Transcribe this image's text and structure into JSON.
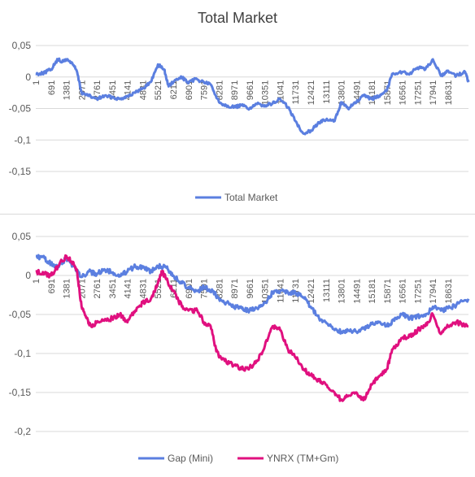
{
  "chart_data": [
    {
      "type": "line",
      "title": "Total Market",
      "xlabel": "",
      "ylabel": "",
      "ylim": [
        -0.15,
        0.05
      ],
      "yticks": [
        "0,05",
        "0",
        "-0,05",
        "-0,1",
        "-0,15"
      ],
      "yticks_values": [
        0.05,
        0,
        -0.05,
        -0.1,
        -0.15
      ],
      "x_range": [
        1,
        19550
      ],
      "x_ticks": [
        "1",
        "691",
        "1381",
        "2071",
        "2761",
        "3451",
        "4141",
        "4831",
        "5521",
        "6211",
        "6901",
        "7591",
        "8281",
        "8971",
        "9661",
        "10351",
        "11041",
        "11731",
        "12421",
        "13111",
        "13801",
        "14491",
        "15181",
        "15871",
        "16561",
        "17251",
        "17941",
        "18631"
      ],
      "grid": "horizontal",
      "legend_position": "bottom",
      "series": [
        {
          "name": "Total Market",
          "color": "#5b7fe0",
          "points": [
            [
              1,
              0.005
            ],
            [
              300,
              0.006
            ],
            [
              691,
              0.012
            ],
            [
              1000,
              0.028
            ],
            [
              1200,
              0.024
            ],
            [
              1381,
              0.028
            ],
            [
              1650,
              0.022
            ],
            [
              1850,
              0.01
            ],
            [
              2071,
              -0.025
            ],
            [
              2400,
              -0.03
            ],
            [
              2761,
              -0.035
            ],
            [
              3100,
              -0.03
            ],
            [
              3451,
              -0.032
            ],
            [
              3800,
              -0.035
            ],
            [
              4141,
              -0.03
            ],
            [
              4500,
              -0.025
            ],
            [
              4831,
              -0.018
            ],
            [
              5200,
              -0.008
            ],
            [
              5521,
              0.02
            ],
            [
              5800,
              0.012
            ],
            [
              6000,
              -0.015
            ],
            [
              6211,
              -0.008
            ],
            [
              6600,
              0.0
            ],
            [
              6901,
              -0.01
            ],
            [
              7200,
              -0.003
            ],
            [
              7591,
              -0.008
            ],
            [
              7900,
              -0.012
            ],
            [
              8281,
              -0.04
            ],
            [
              8600,
              -0.045
            ],
            [
              8971,
              -0.048
            ],
            [
              9300,
              -0.045
            ],
            [
              9661,
              -0.05
            ],
            [
              10000,
              -0.043
            ],
            [
              10351,
              -0.045
            ],
            [
              10700,
              -0.042
            ],
            [
              11041,
              -0.035
            ],
            [
              11400,
              -0.048
            ],
            [
              11731,
              -0.07
            ],
            [
              12100,
              -0.09
            ],
            [
              12421,
              -0.085
            ],
            [
              12800,
              -0.072
            ],
            [
              13111,
              -0.068
            ],
            [
              13500,
              -0.07
            ],
            [
              13801,
              -0.04
            ],
            [
              14100,
              -0.05
            ],
            [
              14491,
              -0.04
            ],
            [
              14800,
              -0.03
            ],
            [
              15181,
              -0.035
            ],
            [
              15500,
              -0.03
            ],
            [
              15871,
              -0.02
            ],
            [
              16100,
              0.005
            ],
            [
              16561,
              0.008
            ],
            [
              16900,
              0.005
            ],
            [
              17251,
              0.015
            ],
            [
              17600,
              0.012
            ],
            [
              17941,
              0.028
            ],
            [
              18300,
              0.002
            ],
            [
              18631,
              0.01
            ],
            [
              19000,
              0.002
            ],
            [
              19400,
              0.008
            ],
            [
              19550,
              -0.008
            ]
          ]
        }
      ]
    },
    {
      "type": "line",
      "title": "",
      "xlabel": "",
      "ylabel": "",
      "ylim": [
        -0.2,
        0.05
      ],
      "yticks": [
        "0,05",
        "0",
        "-0,05",
        "-0,1",
        "-0,15",
        "-0,2"
      ],
      "yticks_values": [
        0.05,
        0,
        -0.05,
        -0.1,
        -0.15,
        -0.2
      ],
      "x_range": [
        1,
        19550
      ],
      "x_ticks": [
        "1",
        "691",
        "1381",
        "2071",
        "2761",
        "3451",
        "4141",
        "4831",
        "5521",
        "6211",
        "6901",
        "7591",
        "8281",
        "8971",
        "9661",
        "10351",
        "11041",
        "11731",
        "12421",
        "13111",
        "13801",
        "14491",
        "15181",
        "15871",
        "16561",
        "17251",
        "17941",
        "18631"
      ],
      "grid": "horizontal",
      "legend_position": "bottom",
      "series": [
        {
          "name": "Gap (Mini)",
          "color": "#5b7fe0",
          "points": [
            [
              1,
              0.025
            ],
            [
              400,
              0.022
            ],
            [
              691,
              0.015
            ],
            [
              1000,
              0.012
            ],
            [
              1381,
              0.022
            ],
            [
              1700,
              0.012
            ],
            [
              2071,
              -0.002
            ],
            [
              2400,
              0.005
            ],
            [
              2761,
              0.002
            ],
            [
              3100,
              0.008
            ],
            [
              3451,
              0.004
            ],
            [
              3800,
              0.0
            ],
            [
              4141,
              0.005
            ],
            [
              4500,
              0.012
            ],
            [
              4831,
              0.01
            ],
            [
              5200,
              0.005
            ],
            [
              5521,
              0.012
            ],
            [
              5900,
              0.01
            ],
            [
              6211,
              0.0
            ],
            [
              6600,
              -0.01
            ],
            [
              6901,
              -0.015
            ],
            [
              7300,
              -0.02
            ],
            [
              7591,
              -0.015
            ],
            [
              8000,
              -0.02
            ],
            [
              8281,
              -0.03
            ],
            [
              8600,
              -0.035
            ],
            [
              8971,
              -0.04
            ],
            [
              9300,
              -0.042
            ],
            [
              9661,
              -0.045
            ],
            [
              10000,
              -0.042
            ],
            [
              10351,
              -0.035
            ],
            [
              10700,
              -0.022
            ],
            [
              11041,
              -0.02
            ],
            [
              11400,
              -0.022
            ],
            [
              11731,
              -0.022
            ],
            [
              12100,
              -0.028
            ],
            [
              12421,
              -0.04
            ],
            [
              12800,
              -0.055
            ],
            [
              13111,
              -0.06
            ],
            [
              13500,
              -0.07
            ],
            [
              13801,
              -0.072
            ],
            [
              14100,
              -0.07
            ],
            [
              14491,
              -0.072
            ],
            [
              14800,
              -0.068
            ],
            [
              15181,
              -0.062
            ],
            [
              15500,
              -0.06
            ],
            [
              15871,
              -0.065
            ],
            [
              16200,
              -0.058
            ],
            [
              16561,
              -0.05
            ],
            [
              16900,
              -0.055
            ],
            [
              17251,
              -0.052
            ],
            [
              17600,
              -0.052
            ],
            [
              17941,
              -0.04
            ],
            [
              18300,
              -0.045
            ],
            [
              18631,
              -0.042
            ],
            [
              19000,
              -0.038
            ],
            [
              19550,
              -0.03
            ]
          ]
        },
        {
          "name": "YNRX (TM+Gm)",
          "color": "#e0107f",
          "points": [
            [
              1,
              0.005
            ],
            [
              400,
              0.002
            ],
            [
              691,
              0.0
            ],
            [
              1000,
              0.012
            ],
            [
              1381,
              0.025
            ],
            [
              1600,
              0.018
            ],
            [
              1850,
              0.008
            ],
            [
              2071,
              -0.04
            ],
            [
              2300,
              -0.055
            ],
            [
              2500,
              -0.065
            ],
            [
              2761,
              -0.06
            ],
            [
              3100,
              -0.058
            ],
            [
              3451,
              -0.055
            ],
            [
              3800,
              -0.05
            ],
            [
              4141,
              -0.06
            ],
            [
              4500,
              -0.045
            ],
            [
              4831,
              -0.035
            ],
            [
              5200,
              -0.03
            ],
            [
              5521,
              -0.01
            ],
            [
              5700,
              0.005
            ],
            [
              5900,
              -0.005
            ],
            [
              6211,
              -0.02
            ],
            [
              6600,
              -0.04
            ],
            [
              6901,
              -0.045
            ],
            [
              7300,
              -0.045
            ],
            [
              7591,
              -0.06
            ],
            [
              7900,
              -0.065
            ],
            [
              8100,
              -0.09
            ],
            [
              8281,
              -0.105
            ],
            [
              8600,
              -0.11
            ],
            [
              8971,
              -0.115
            ],
            [
              9300,
              -0.12
            ],
            [
              9661,
              -0.118
            ],
            [
              10000,
              -0.11
            ],
            [
              10351,
              -0.09
            ],
            [
              10700,
              -0.065
            ],
            [
              11041,
              -0.07
            ],
            [
              11400,
              -0.095
            ],
            [
              11731,
              -0.105
            ],
            [
              12100,
              -0.12
            ],
            [
              12421,
              -0.128
            ],
            [
              12800,
              -0.135
            ],
            [
              13111,
              -0.14
            ],
            [
              13500,
              -0.15
            ],
            [
              13801,
              -0.16
            ],
            [
              14100,
              -0.155
            ],
            [
              14491,
              -0.15
            ],
            [
              14800,
              -0.16
            ],
            [
              15181,
              -0.14
            ],
            [
              15500,
              -0.13
            ],
            [
              15871,
              -0.12
            ],
            [
              16100,
              -0.095
            ],
            [
              16561,
              -0.08
            ],
            [
              16900,
              -0.078
            ],
            [
              17251,
              -0.07
            ],
            [
              17600,
              -0.065
            ],
            [
              17941,
              -0.05
            ],
            [
              18300,
              -0.075
            ],
            [
              18631,
              -0.065
            ],
            [
              19000,
              -0.06
            ],
            [
              19550,
              -0.065
            ]
          ]
        }
      ]
    }
  ]
}
